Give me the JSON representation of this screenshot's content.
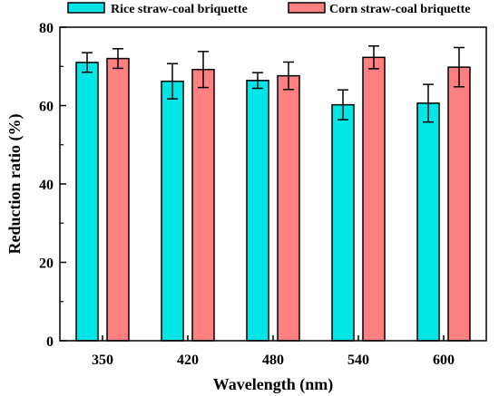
{
  "chart_data": {
    "type": "bar",
    "xlabel": "Wavelength (nm)",
    "ylabel": "Reduction ratio  (%)",
    "ylim": [
      0,
      80
    ],
    "yticks": [
      0,
      20,
      40,
      60,
      80
    ],
    "categories": [
      "350",
      "420",
      "480",
      "540",
      "600"
    ],
    "error_bars": true,
    "legend_position": "top",
    "series": [
      {
        "name": "Rice straw-coal briquette",
        "color": "#00e5e5",
        "values": [
          71.0,
          66.2,
          66.4,
          60.2,
          60.6
        ],
        "errors": [
          2.5,
          4.5,
          2.0,
          3.8,
          4.8
        ]
      },
      {
        "name": "Corn straw-coal briquette",
        "color": "#ff8080",
        "values": [
          72.0,
          69.2,
          67.6,
          72.3,
          69.8
        ],
        "errors": [
          2.5,
          4.6,
          3.5,
          2.9,
          5.0
        ]
      }
    ]
  }
}
